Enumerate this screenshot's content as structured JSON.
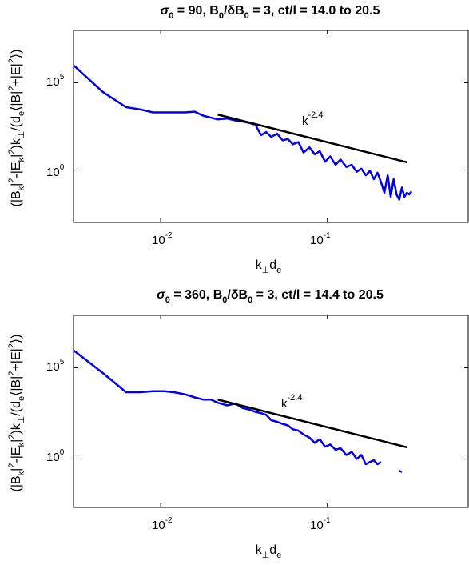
{
  "chart_data": [
    {
      "type": "line",
      "title_parts": {
        "sigma": "σ",
        "sigma_sub": "0",
        "sigma_val": " = 90, B",
        "b_sub": "0",
        "slash": "/δB",
        "db_sub": "0",
        "rest": " = 3, ct/l = 14.0 to 20.5"
      },
      "xlabel": {
        "base": "k",
        "sub1": "⊥",
        "mid": "d",
        "sub2": "e"
      },
      "ylabel": {
        "p1": "(|B",
        "s1": "k",
        "p2": "|",
        "e1": "2",
        "p3": "-|E",
        "s2": "k",
        "p4": "|",
        "e2": "2",
        "p5": ")k",
        "s3": "⊥",
        "p6": "/(d",
        "s4": "e",
        "p7": "⟨|B|",
        "e3": "2",
        "p8": "+|E|",
        "e4": "2",
        "p9": "⟩)"
      },
      "x_scale": "log",
      "y_scale": "log",
      "xlim": [
        0.003,
        0.7
      ],
      "ylim": [
        0.001,
        100000000
      ],
      "x_ticks": [
        {
          "value": 0.01,
          "base": "10",
          "exp": "-2"
        },
        {
          "value": 0.1,
          "base": "10",
          "exp": "-1"
        }
      ],
      "y_ticks": [
        {
          "value": 1,
          "base": "10",
          "exp": "0"
        },
        {
          "value": 100000,
          "base": "10",
          "exp": "5"
        }
      ],
      "series": [
        {
          "color": "#0000ee",
          "x": [
            0.003,
            0.0045,
            0.0062,
            0.0075,
            0.009,
            0.0105,
            0.012,
            0.014,
            0.016,
            0.018,
            0.02,
            0.022,
            0.025,
            0.028,
            0.031,
            0.034,
            0.037,
            0.04,
            0.043,
            0.046,
            0.05,
            0.054,
            0.058,
            0.062,
            0.067,
            0.072,
            0.078,
            0.084,
            0.09,
            0.097,
            0.104,
            0.112,
            0.12,
            0.13,
            0.14,
            0.15,
            0.16,
            0.17,
            0.18,
            0.19,
            0.2,
            0.21,
            0.22,
            0.23,
            0.24,
            0.25,
            0.26,
            0.27,
            0.28,
            0.29,
            0.3,
            0.31,
            0.32
          ],
          "y": [
            1000000,
            30000,
            4000,
            3000,
            2000,
            2000,
            2000,
            2000,
            2200,
            1300,
            1000,
            800,
            900,
            700,
            600,
            500,
            400,
            100,
            150,
            80,
            120,
            50,
            60,
            30,
            40,
            10,
            20,
            8,
            12,
            3,
            6,
            2,
            4,
            1.5,
            2,
            0.8,
            1.2,
            0.5,
            0.9,
            0.3,
            0.7,
            0.2,
            0.05,
            0.5,
            0.03,
            0.3,
            0.04,
            0.02,
            0.1,
            0.03,
            0.05,
            0.04,
            0.06
          ]
        }
      ],
      "fit_line": {
        "color": "#000000",
        "x": [
          0.022,
          0.3
        ],
        "y": [
          1500,
          2.8
        ]
      },
      "annotation": {
        "base": "k",
        "exp": "-2.4",
        "x": 0.065,
        "y": 220
      }
    },
    {
      "type": "line",
      "title_parts": {
        "sigma": "σ",
        "sigma_sub": "0",
        "sigma_val": " = 360, B",
        "b_sub": "0",
        "slash": "/δB",
        "db_sub": "0",
        "rest": " = 3, ct/l = 14.4 to 20.5"
      },
      "xlabel": {
        "base": "k",
        "sub1": "⊥",
        "mid": "d",
        "sub2": "e"
      },
      "ylabel": {
        "p1": "(|B",
        "s1": "k",
        "p2": "|",
        "e1": "2",
        "p3": "-|E",
        "s2": "k",
        "p4": "|",
        "e2": "2",
        "p5": ")k",
        "s3": "⊥",
        "p6": "/(d",
        "s4": "e",
        "p7": "⟨|B|",
        "e3": "2",
        "p8": "+|E|",
        "e4": "2",
        "p9": "⟩)"
      },
      "x_scale": "log",
      "y_scale": "log",
      "xlim": [
        0.003,
        0.7
      ],
      "ylim": [
        0.001,
        100000000
      ],
      "x_ticks": [
        {
          "value": 0.01,
          "base": "10",
          "exp": "-2"
        },
        {
          "value": 0.1,
          "base": "10",
          "exp": "-1"
        }
      ],
      "y_ticks": [
        {
          "value": 1,
          "base": "10",
          "exp": "0"
        },
        {
          "value": 100000,
          "base": "10",
          "exp": "5"
        }
      ],
      "series": [
        {
          "color": "#0000ee",
          "x": [
            0.003,
            0.0045,
            0.0062,
            0.0075,
            0.009,
            0.0105,
            0.012,
            0.014,
            0.016,
            0.018,
            0.02,
            0.022,
            0.025,
            0.028,
            0.031,
            0.034,
            0.037,
            0.04,
            0.043,
            0.046,
            0.05,
            0.054,
            0.058,
            0.062,
            0.067,
            0.072,
            0.078,
            0.084,
            0.09,
            0.097,
            0.104,
            0.112,
            0.12,
            0.13,
            0.14,
            0.15,
            0.16,
            0.17,
            0.18,
            0.19,
            0.2,
            0.21
          ],
          "y": [
            1000000,
            50000,
            4000,
            4000,
            4500,
            4500,
            4000,
            3000,
            2000,
            1500,
            1500,
            1000,
            700,
            900,
            500,
            400,
            300,
            250,
            200,
            100,
            80,
            60,
            50,
            30,
            25,
            15,
            10,
            5,
            8,
            3,
            4,
            2,
            2.5,
            1,
            1.5,
            0.6,
            1,
            0.3,
            0.4,
            0.5,
            0.3,
            0.4
          ]
        },
        {
          "color": "#0000ee",
          "x": [
            0.27,
            0.28
          ],
          "y": [
            0.12,
            0.11
          ]
        }
      ],
      "fit_line": {
        "color": "#000000",
        "x": [
          0.022,
          0.3
        ],
        "y": [
          1500,
          2.8
        ]
      },
      "annotation": {
        "base": "k",
        "exp": "-2.4",
        "x": 0.05,
        "y": 280
      }
    }
  ]
}
